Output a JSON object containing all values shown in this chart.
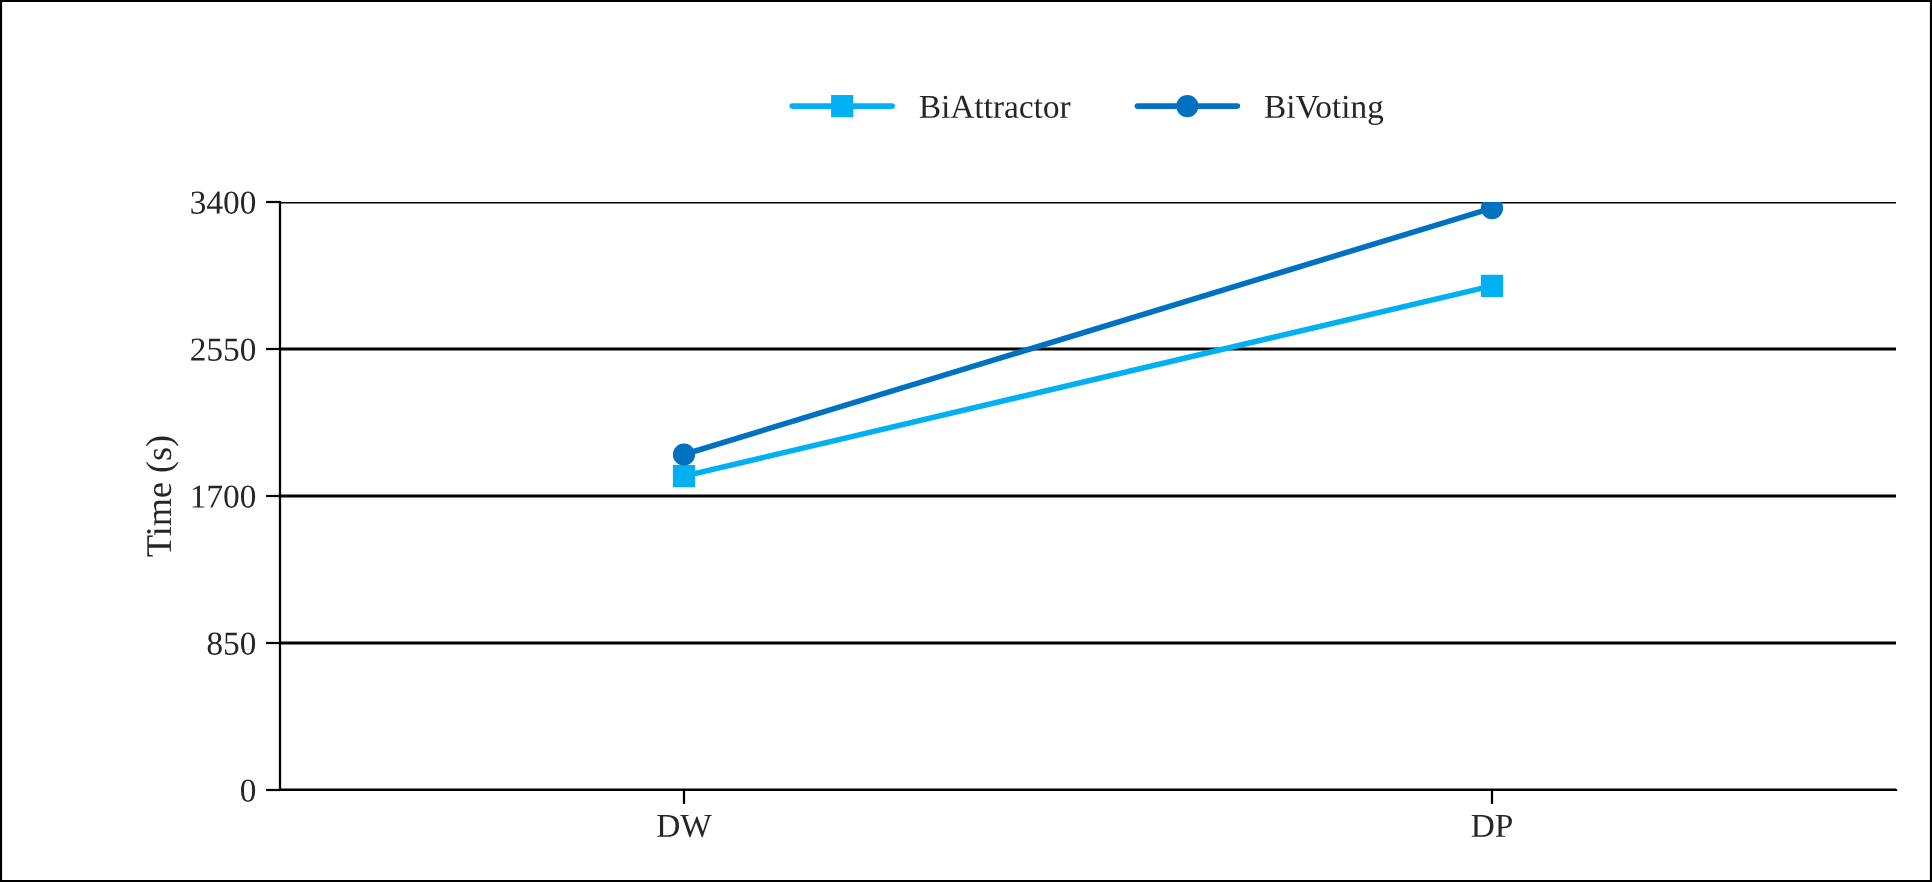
{
  "chart_data": {
    "type": "line",
    "ylabel": "Time (s)",
    "categories": [
      "DW",
      "DP"
    ],
    "series": [
      {
        "name": "BiAttractor",
        "color": "#00b0f0",
        "values": [
          1815,
          2915
        ],
        "marker": "square"
      },
      {
        "name": "BiVoting",
        "color": "#0070c0",
        "values": [
          1940,
          3365
        ],
        "marker": "circle"
      }
    ],
    "ylim": [
      0,
      3400
    ],
    "yticks": [
      0,
      850,
      1700,
      2550,
      3400
    ],
    "grid": "y",
    "legend": "top",
    "line_style": "solid"
  }
}
